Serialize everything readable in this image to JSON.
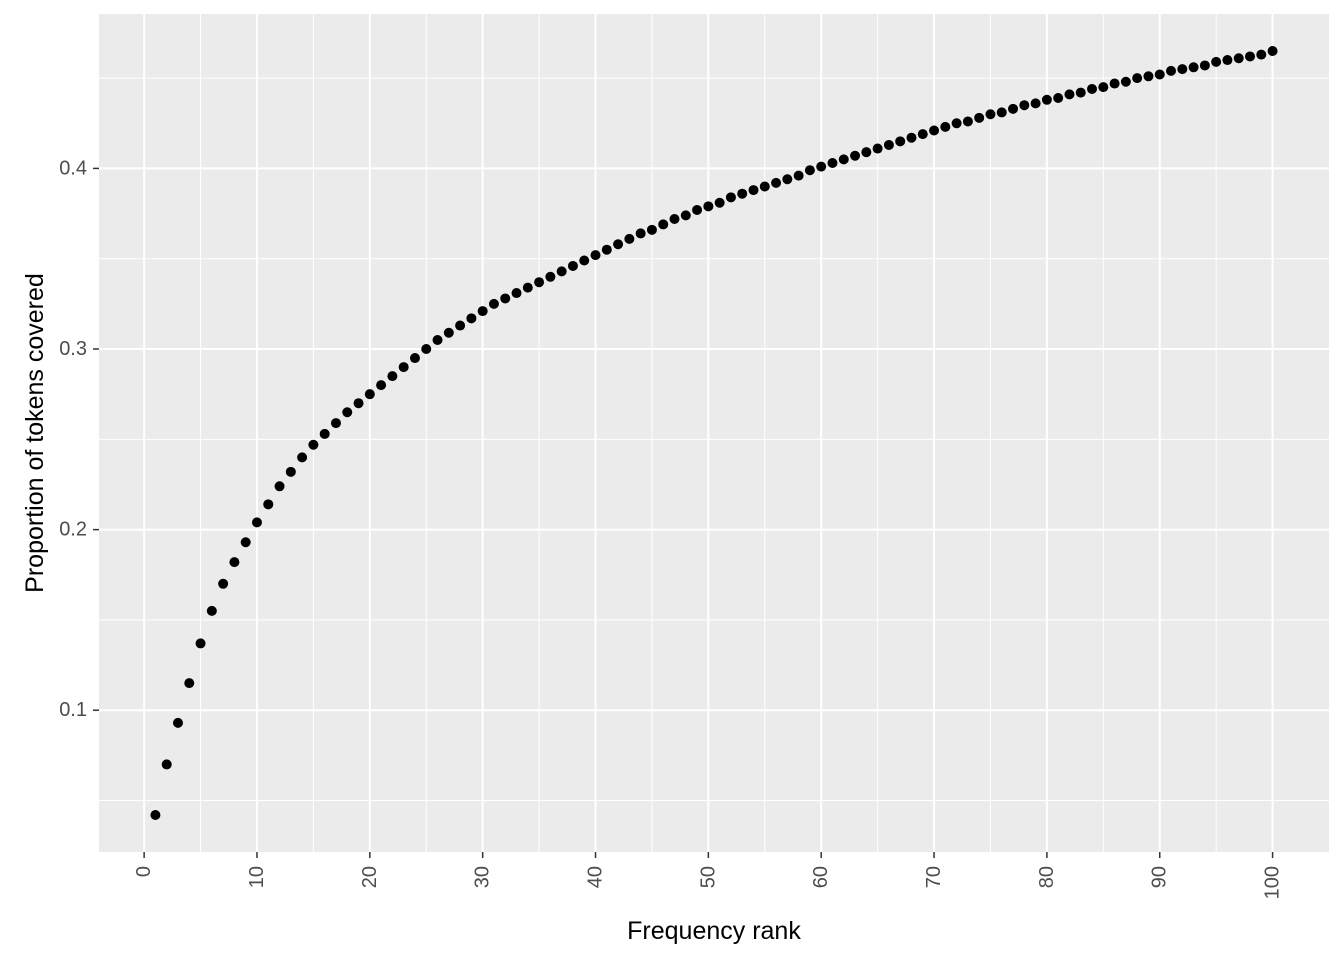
{
  "chart_data": {
    "type": "scatter",
    "title": "",
    "xlabel": "Frequency rank",
    "ylabel": "Proportion of tokens covered",
    "xlim": [
      -4,
      105
    ],
    "ylim": [
      0.0215,
      0.4855
    ],
    "x_ticks": [
      "0",
      "10",
      "20",
      "30",
      "40",
      "50",
      "60",
      "70",
      "80",
      "90",
      "100"
    ],
    "x_tick_values": [
      0,
      10,
      20,
      30,
      40,
      50,
      60,
      70,
      80,
      90,
      100
    ],
    "y_ticks": [
      "0.1",
      "0.2",
      "0.3",
      "0.4"
    ],
    "y_tick_values": [
      0.1,
      0.2,
      0.3,
      0.4
    ],
    "grid": true,
    "legend": "none",
    "colors": {
      "panel": "#ebebeb",
      "grid": "#ffffff",
      "point": "#000000",
      "tick_text": "#4d4d4d",
      "title_text": "#000000"
    },
    "x": [
      1,
      2,
      3,
      4,
      5,
      6,
      7,
      8,
      9,
      10,
      11,
      12,
      13,
      14,
      15,
      16,
      17,
      18,
      19,
      20,
      21,
      22,
      23,
      24,
      25,
      26,
      27,
      28,
      29,
      30,
      31,
      32,
      33,
      34,
      35,
      36,
      37,
      38,
      39,
      40,
      41,
      42,
      43,
      44,
      45,
      46,
      47,
      48,
      49,
      50,
      51,
      52,
      53,
      54,
      55,
      56,
      57,
      58,
      59,
      60,
      61,
      62,
      63,
      64,
      65,
      66,
      67,
      68,
      69,
      70,
      71,
      72,
      73,
      74,
      75,
      76,
      77,
      78,
      79,
      80,
      81,
      82,
      83,
      84,
      85,
      86,
      87,
      88,
      89,
      90,
      91,
      92,
      93,
      94,
      95,
      96,
      97,
      98,
      99,
      100
    ],
    "y": [
      0.042,
      0.07,
      0.093,
      0.115,
      0.137,
      0.155,
      0.17,
      0.182,
      0.193,
      0.204,
      0.214,
      0.224,
      0.232,
      0.24,
      0.247,
      0.253,
      0.259,
      0.265,
      0.27,
      0.275,
      0.28,
      0.285,
      0.29,
      0.295,
      0.3,
      0.305,
      0.309,
      0.313,
      0.317,
      0.321,
      0.325,
      0.328,
      0.331,
      0.334,
      0.337,
      0.34,
      0.343,
      0.346,
      0.349,
      0.352,
      0.355,
      0.358,
      0.361,
      0.364,
      0.366,
      0.369,
      0.372,
      0.374,
      0.377,
      0.379,
      0.381,
      0.384,
      0.386,
      0.388,
      0.39,
      0.392,
      0.394,
      0.396,
      0.399,
      0.401,
      0.403,
      0.405,
      0.407,
      0.409,
      0.411,
      0.413,
      0.415,
      0.417,
      0.419,
      0.421,
      0.423,
      0.425,
      0.426,
      0.428,
      0.43,
      0.431,
      0.433,
      0.435,
      0.436,
      0.438,
      0.439,
      0.441,
      0.442,
      0.444,
      0.445,
      0.447,
      0.448,
      0.45,
      0.451,
      0.452,
      0.454,
      0.455,
      0.456,
      0.457,
      0.459,
      0.46,
      0.461,
      0.462,
      0.463,
      0.465
    ]
  }
}
